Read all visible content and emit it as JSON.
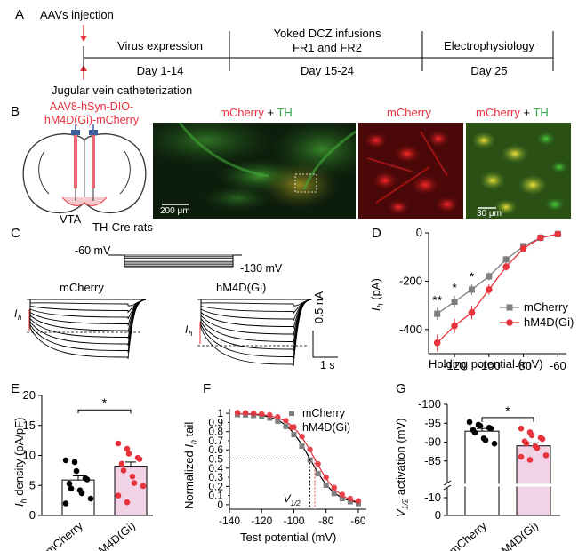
{
  "panels": {
    "A": {
      "label": "A",
      "aav_injection": "AAVs injection",
      "jugular": "Jugular vein catheterization",
      "phases": [
        {
          "title": "Virus expression",
          "days": "Day 1-14"
        },
        {
          "title_line1": "Yoked DCZ infusions",
          "title_line2": "FR1 and FR2",
          "days": "Day 15-24"
        },
        {
          "title": "Electrophysiology",
          "days": "Day 25"
        }
      ]
    },
    "B": {
      "label": "B",
      "virus_line1": "AAV8-hSyn-DIO-",
      "virus_line2": "hM4D(Gi)-mCherry",
      "region": "VTA",
      "animal": "TH-Cre rats",
      "img1_title_a": "mCherry",
      "img1_title_plus": " + ",
      "img1_title_b": "TH",
      "img2_title": "mCherry",
      "img3_title_a": "mCherry",
      "img3_title_plus": " + ",
      "img3_title_b": "TH",
      "scale1": "200 μm",
      "scale2": "30 μm"
    },
    "C": {
      "label": "C",
      "v_hold": "-60 mV",
      "v_step": "-130 mV",
      "group1": "mCherry",
      "group2": "hM4D(Gi)",
      "ih_label": "I",
      "ih_sub": "h",
      "scale_y": "0.5 nA",
      "scale_x": "1 s"
    },
    "D": {
      "label": "D",
      "ylabel_main": "I",
      "ylabel_sub": "h",
      "ylabel_unit": " (pA)",
      "xlabel": "Holding potential (mV)",
      "legend": [
        "mCherry",
        "hM4D(Gi)"
      ],
      "sig": [
        {
          "text": "**",
          "x": -130
        },
        {
          "text": "*",
          "x": -120
        },
        {
          "text": "*",
          "x": -110
        }
      ]
    },
    "E": {
      "label": "E",
      "ylabel_main": "I",
      "ylabel_sub": "h",
      "ylabel_unit": " density (pA/pF)",
      "sig": "*",
      "categories": [
        "mCherry",
        "hM4D(Gi)"
      ]
    },
    "F": {
      "label": "F",
      "ylabel_pre": "Normalized ",
      "ylabel_main": "I",
      "ylabel_sub": "h",
      "ylabel_post": " tail",
      "xlabel": "Test potential (mV)",
      "legend": [
        "mCherry",
        "hM4D(Gi)"
      ],
      "v_half": "V",
      "v_half_sub": "1/2"
    },
    "G": {
      "label": "G",
      "ylabel_main": "V",
      "ylabel_sub": "1/2",
      "ylabel_unit": " activation (mV)",
      "sig": "*",
      "categories": [
        "mCherry",
        "hM4D(Gi)"
      ]
    }
  },
  "colors": {
    "red": "#e8323c",
    "green": "#2ea84a",
    "gray": "#7f7f7f",
    "pink_bar": "#f2d3e6"
  },
  "chart_data": [
    {
      "id": "D",
      "type": "line",
      "xlabel": "Holding potential (mV)",
      "ylabel": "Ih (pA)",
      "xlim": [
        -135,
        -55
      ],
      "ylim": [
        -500,
        0
      ],
      "xticks": [
        -120,
        -100,
        -80,
        -60
      ],
      "yticks": [
        0,
        -200,
        -400
      ],
      "legend_position": "bottom-right",
      "x": [
        -130,
        -120,
        -110,
        -100,
        -90,
        -80,
        -70,
        -60
      ],
      "series": [
        {
          "name": "mCherry",
          "color": "#7f7f7f",
          "values": [
            -335,
            -285,
            -235,
            -180,
            -110,
            -55,
            -20,
            -5
          ],
          "err": [
            25,
            25,
            22,
            18,
            15,
            10,
            6,
            4
          ]
        },
        {
          "name": "hM4D(Gi)",
          "color": "#e8323c",
          "values": [
            -455,
            -385,
            -330,
            -235,
            -140,
            -65,
            -20,
            -5
          ],
          "err": [
            35,
            30,
            28,
            22,
            16,
            10,
            6,
            4
          ]
        }
      ]
    },
    {
      "id": "E",
      "type": "bar",
      "categories": [
        "mCherry",
        "hM4D(Gi)"
      ],
      "values": [
        5.9,
        8.2
      ],
      "err": [
        0.7,
        0.7
      ],
      "ylabel": "Ih density (pA/pF)",
      "ylim": [
        0,
        20
      ],
      "yticks": [
        0,
        5,
        10,
        15,
        20
      ],
      "points": [
        [
          9.2,
          8.9,
          7.4,
          6.2,
          6.0,
          5.3,
          4.5,
          4.2,
          3.7,
          2.8,
          2.0
        ],
        [
          12.0,
          11.1,
          10.3,
          9.6,
          9.4,
          8.6,
          7.5,
          6.5,
          5.4,
          4.9,
          3.3,
          2.2
        ]
      ]
    },
    {
      "id": "F",
      "type": "line",
      "xlabel": "Test potential (mV)",
      "ylabel": "Normalized Ih tail",
      "xlim": [
        -140,
        -55
      ],
      "ylim": [
        -0.05,
        1.05
      ],
      "xticks": [
        -140,
        -120,
        -100,
        -80,
        -60
      ],
      "yticks": [
        0,
        0.1,
        0.2,
        0.3,
        0.4,
        0.5,
        0.6,
        0.7,
        0.8,
        0.9,
        1
      ],
      "legend_position": "top-right",
      "reference_y": 0.5,
      "v_half": [
        -90,
        -87
      ],
      "x": [
        -135,
        -130,
        -125,
        -120,
        -115,
        -110,
        -105,
        -100,
        -95,
        -90,
        -85,
        -80,
        -75,
        -70,
        -65,
        -60
      ],
      "series": [
        {
          "name": "mCherry",
          "color": "#7f7f7f",
          "v_half": -90,
          "slope": 8.0
        },
        {
          "name": "hM4D(Gi)",
          "color": "#e8323c",
          "v_half": -87,
          "slope": 7.8
        }
      ]
    },
    {
      "id": "G",
      "type": "bar",
      "categories": [
        "mCherry",
        "hM4D(Gi)"
      ],
      "values": [
        -92.9,
        -89.0
      ],
      "err": [
        0.7,
        0.8
      ],
      "ylabel": "V1/2 activation (mV)",
      "ylim_display": [
        -100,
        -80
      ],
      "yticks": [
        -100,
        -95,
        -90,
        -85,
        -10,
        0
      ],
      "axis_break": true,
      "points": [
        [
          -95.3,
          -94.6,
          -94.3,
          -93.8,
          -93.6,
          -93.2,
          -92.5,
          -91.0,
          -90.5,
          -89.6
        ],
        [
          -93.6,
          -92.6,
          -91.8,
          -91.2,
          -90.8,
          -90.2,
          -89.6,
          -88.9,
          -88.4,
          -86.5,
          -86.1,
          -85.3
        ]
      ]
    }
  ]
}
